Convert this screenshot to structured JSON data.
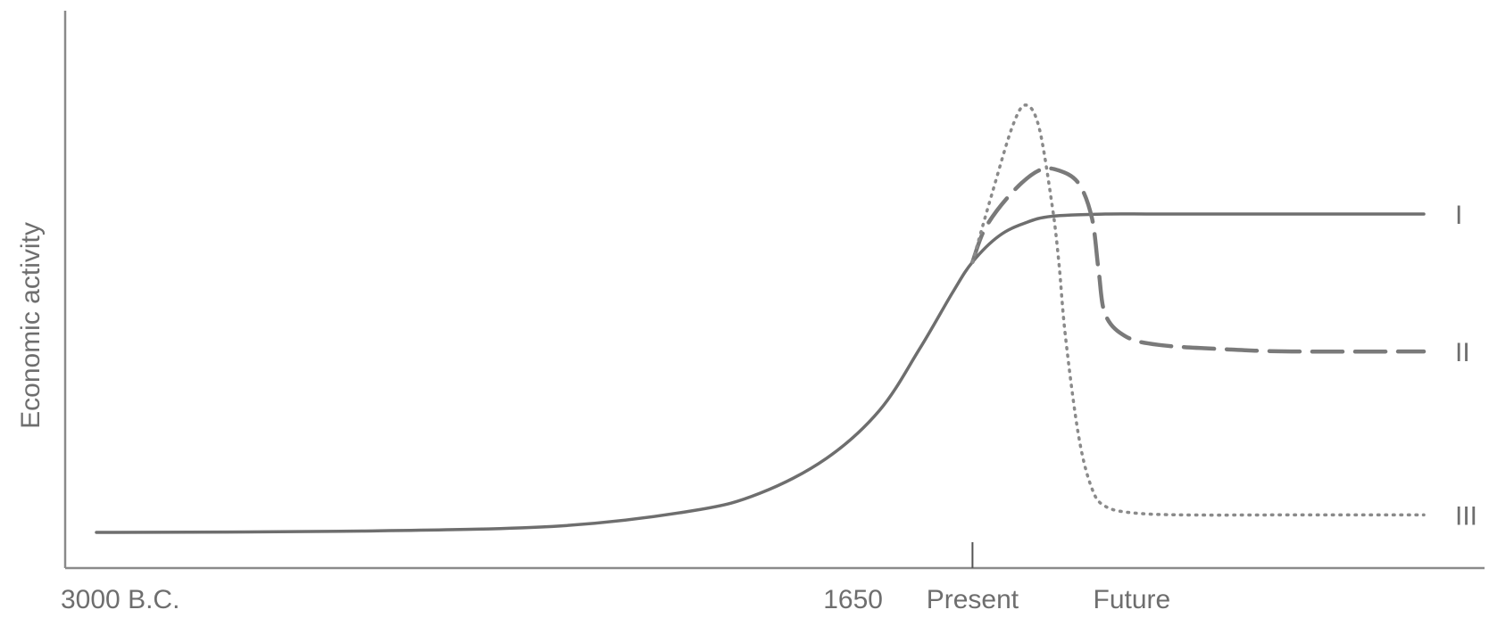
{
  "chart_data": {
    "type": "line",
    "title": "",
    "xlabel": "",
    "ylabel": "Economic activity",
    "grid": false,
    "legend": "inline labels at right end of each line",
    "x_ticks": [
      {
        "label": "3000 B.C.",
        "x": 0
      },
      {
        "label": "1650",
        "x": 0.57
      },
      {
        "label": "Present",
        "x": 0.66
      },
      {
        "label": "Future",
        "x": 0.78
      }
    ],
    "present_marker_x": 0.66,
    "xlim": [
      0,
      1
    ],
    "ylim": [
      0,
      1
    ],
    "series": [
      {
        "name": "I",
        "style": "solid",
        "color": "#6e6e6e",
        "x": [
          0.0,
          0.2,
          0.35,
          0.45,
          0.5,
          0.55,
          0.59,
          0.62,
          0.645,
          0.66,
          0.68,
          0.7,
          0.72,
          0.76,
          0.8,
          0.9,
          1.0
        ],
        "y": [
          0.0,
          0.003,
          0.015,
          0.05,
          0.09,
          0.17,
          0.28,
          0.42,
          0.55,
          0.62,
          0.68,
          0.71,
          0.725,
          0.73,
          0.73,
          0.73,
          0.73
        ]
      },
      {
        "name": "II",
        "style": "dashed",
        "color": "#7a7a7a",
        "x": [
          0.66,
          0.67,
          0.69,
          0.71,
          0.725,
          0.74,
          0.75,
          0.755,
          0.76,
          0.775,
          0.8,
          0.85,
          0.9,
          1.0
        ],
        "y": [
          0.62,
          0.7,
          0.78,
          0.83,
          0.83,
          0.8,
          0.72,
          0.6,
          0.5,
          0.45,
          0.43,
          0.42,
          0.415,
          0.415
        ]
      },
      {
        "name": "III",
        "style": "dotted",
        "color": "#8a8a8a",
        "x": [
          0.66,
          0.675,
          0.69,
          0.7,
          0.71,
          0.72,
          0.725,
          0.73,
          0.74,
          0.75,
          0.76,
          0.78,
          0.82,
          0.9,
          1.0
        ],
        "y": [
          0.62,
          0.78,
          0.93,
          0.98,
          0.93,
          0.75,
          0.62,
          0.45,
          0.22,
          0.1,
          0.06,
          0.045,
          0.04,
          0.04,
          0.04
        ]
      }
    ]
  }
}
